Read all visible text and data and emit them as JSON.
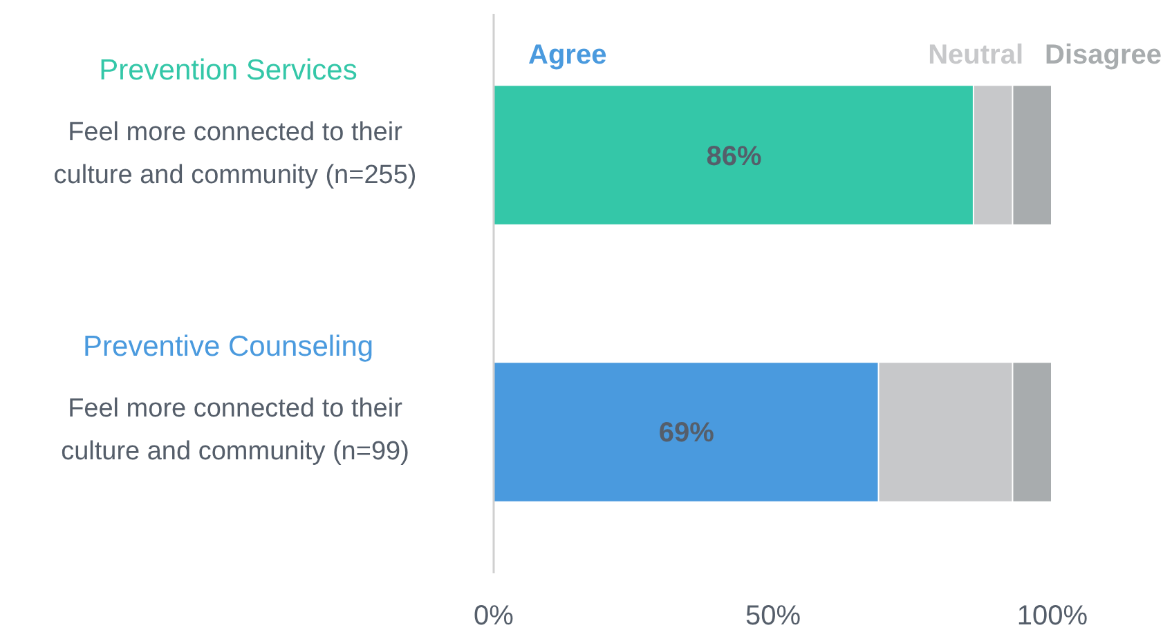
{
  "chart_data": {
    "type": "bar",
    "orientation": "horizontal",
    "stacked": true,
    "categories": [
      "Prevention Services\nFeel more connected to their\nculture and community (n=255)",
      "Preventive Counseling\nFeel more connected to their\nculture and community (n=99)"
    ],
    "series": [
      {
        "name": "Agree",
        "color": "#4a9ade",
        "colors": [
          "#34c7a8",
          "#4a9ade"
        ],
        "values": [
          86,
          69
        ],
        "value_labels": [
          "86%",
          "69%"
        ]
      },
      {
        "name": "Neutral",
        "color": "#c7c8ca",
        "values": [
          7,
          24
        ]
      },
      {
        "name": "Disagree",
        "color": "#a8acae",
        "values": [
          7,
          7
        ]
      }
    ],
    "xlim": [
      0,
      100
    ],
    "xticks": [
      {
        "value": 0,
        "label": "0%"
      },
      {
        "value": 50,
        "label": "50%"
      },
      {
        "value": 100,
        "label": "100%"
      }
    ],
    "grid": false
  }
}
